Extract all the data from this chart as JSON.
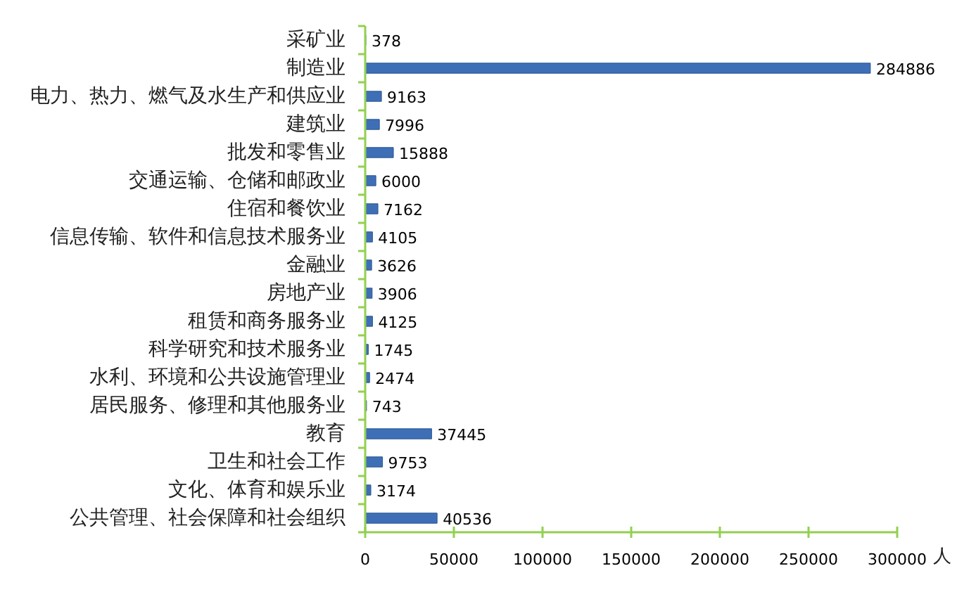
{
  "chart_data": {
    "type": "bar",
    "orientation": "horizontal",
    "categories": [
      "采矿业",
      "制造业",
      "电力、热力、燃气及水生产和供应业",
      "建筑业",
      "批发和零售业",
      "交通运输、仓储和邮政业",
      "住宿和餐饮业",
      "信息传输、软件和信息技术服务业",
      "金融业",
      "房地产业",
      "租赁和商务服务业",
      "科学研究和技术服务业",
      "水利、环境和公共设施管理业",
      "居民服务、修理和其他服务业",
      "教育",
      "卫生和社会工作",
      "文化、体育和娱乐业",
      "公共管理、社会保障和社会组织"
    ],
    "values": [
      378,
      284886,
      9163,
      7996,
      15888,
      6000,
      7162,
      4105,
      3626,
      3906,
      4125,
      1745,
      2474,
      743,
      37445,
      9753,
      3174,
      40536
    ],
    "color": "#3e6fb6",
    "xlim": [
      0,
      300000
    ],
    "xticks": [
      0,
      50000,
      100000,
      150000,
      200000,
      250000,
      300000
    ],
    "xlabel": "人",
    "data_labels": true
  }
}
